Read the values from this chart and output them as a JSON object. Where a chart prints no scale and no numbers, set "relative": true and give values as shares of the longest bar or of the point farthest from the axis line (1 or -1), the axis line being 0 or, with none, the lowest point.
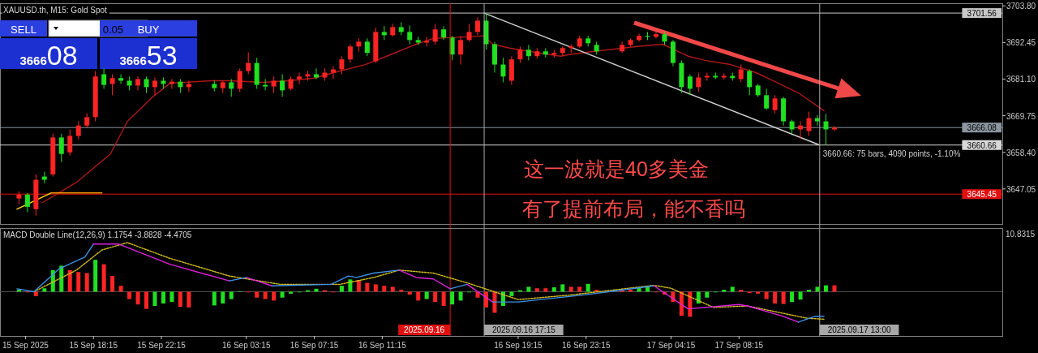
{
  "chart_data": [
    {
      "type": "candlestick",
      "title": "XAUUSD.th, M15:  Gold Spot",
      "xlim": [
        "2025-09-15T12:45",
        "2025-09-17T23:45"
      ],
      "ylim": [
        3636.2,
        3704.6
      ],
      "tick_labels": "y",
      "yticks": [
        {
          "value": 3703.8,
          "label": "3703.80"
        },
        {
          "value": 3692.45,
          "label": "3692.45"
        },
        {
          "value": 3681.1,
          "label": "3681.10"
        },
        {
          "value": 3669.75,
          "label": "3669.75"
        },
        {
          "value": 3658.4,
          "label": "3658.40"
        },
        {
          "value": 3647.05,
          "label": "3647.05"
        }
      ],
      "ref_lines": [
        {
          "axis": "y",
          "value": 3701.56,
          "label": "3701.56",
          "color": "#c8c8c8"
        },
        {
          "axis": "y",
          "value": 3666.08,
          "label": "3666.08",
          "color": "#8c96a0"
        },
        {
          "axis": "y",
          "value": 3660.66,
          "label": "3660.66",
          "color": "#d8d8d8"
        },
        {
          "axis": "y",
          "value": 3645.45,
          "label": "3645.45",
          "color": "#e01010"
        },
        {
          "axis": "x",
          "value": "2025-09-16T15:15",
          "label": "2025.09.16",
          "color": "#e01010"
        },
        {
          "axis": "x",
          "value": "2025-09-16T17:15",
          "label": "2025.09.16 17:15",
          "color": "#a8a8a8"
        },
        {
          "axis": "x",
          "value": "2025-09-17T13:00",
          "label": "2025.09.17 13:00",
          "color": "#a8a8a8"
        }
      ],
      "series": [
        {
          "type": "line",
          "color": "#b01818",
          "x": [
            "2025-09-15T15:15",
            "2025-09-15T17:15",
            "2025-09-15T19:15",
            "2025-09-15T20:15",
            "2025-09-15T21:45",
            "2025-09-15T22:45",
            "2025-09-16T01:15",
            "2025-09-16T02:15",
            "2025-09-16T04:15",
            "2025-09-16T05:45",
            "2025-09-16T07:15",
            "2025-09-16T08:45",
            "2025-09-16T10:15",
            "2025-09-16T11:45",
            "2025-09-16T13:15",
            "2025-09-16T14:15",
            "2025-09-16T16:15",
            "2025-09-16T17:15",
            "2025-09-16T17:45",
            "2025-09-16T18:45",
            "2025-09-16T20:15",
            "2025-09-16T21:45",
            "2025-09-16T22:15",
            "2025-09-16T23:15",
            "2025-09-17T02:15",
            "2025-09-17T03:45",
            "2025-09-17T04:15",
            "2025-09-17T05:15",
            "2025-09-17T06:15",
            "2025-09-17T07:45",
            "2025-09-17T09:15",
            "2025-09-17T10:15",
            "2025-09-17T11:45",
            "2025-09-17T13:15"
          ],
          "values": [
            3642.8,
            3649.1,
            3657.9,
            3668.0,
            3675.6,
            3679.8,
            3680.6,
            3680.6,
            3680.1,
            3680.6,
            3681.4,
            3683.6,
            3685.6,
            3688.7,
            3691.9,
            3693.7,
            3694.2,
            3694.5,
            3691.9,
            3690.7,
            3689.4,
            3688.2,
            3688.7,
            3689.4,
            3691.2,
            3691.9,
            3690.7,
            3688.2,
            3686.9,
            3685.6,
            3683.1,
            3680.6,
            3676.8,
            3671.3
          ]
        },
        {
          "type": "line",
          "color": "#ffd700",
          "x": [
            "2025-09-15T13:45",
            "2025-09-15T15:45"
          ],
          "values": [
            3640.8,
            3645.8
          ]
        },
        {
          "type": "line",
          "color": "#ff9900",
          "x": [
            "2025-09-15T15:45",
            "2025-09-15T18:45"
          ],
          "values": [
            3645.8,
            3645.8
          ]
        },
        {
          "type": "line",
          "color": "#d0d0d0",
          "x": [
            "2025-09-16T17:15",
            "2025-09-17T13:00"
          ],
          "values": [
            3701.56,
            3660.66
          ]
        },
        {
          "x": [
            "2025-09-15T13:52",
            "2025-09-15T14:22",
            "2025-09-15T14:52",
            "2025-09-15T15:22",
            "2025-09-15T15:52",
            "2025-09-15T16:22",
            "2025-09-15T16:52",
            "2025-09-15T17:22",
            "2025-09-15T17:52",
            "2025-09-15T18:22",
            "2025-09-15T18:52",
            "2025-09-15T19:22",
            "2025-09-15T19:52",
            "2025-09-15T20:22",
            "2025-09-15T20:52",
            "2025-09-15T21:22",
            "2025-09-15T21:52",
            "2025-09-15T22:22",
            "2025-09-15T22:52",
            "2025-09-15T23:22",
            "2025-09-15T23:52",
            "2025-09-16T01:22",
            "2025-09-16T01:52",
            "2025-09-16T02:22",
            "2025-09-16T02:52",
            "2025-09-16T03:22",
            "2025-09-16T03:52",
            "2025-09-16T04:22",
            "2025-09-16T04:52",
            "2025-09-16T05:22",
            "2025-09-16T05:52",
            "2025-09-16T06:22",
            "2025-09-16T06:52",
            "2025-09-16T07:22",
            "2025-09-16T07:52",
            "2025-09-16T08:22",
            "2025-09-16T08:52",
            "2025-09-16T09:22",
            "2025-09-16T09:52",
            "2025-09-16T10:22",
            "2025-09-16T10:52",
            "2025-09-16T11:22",
            "2025-09-16T11:52",
            "2025-09-16T12:22",
            "2025-09-16T12:52",
            "2025-09-16T13:22",
            "2025-09-16T13:52",
            "2025-09-16T14:22",
            "2025-09-16T14:52",
            "2025-09-16T15:22",
            "2025-09-16T15:52",
            "2025-09-16T16:22",
            "2025-09-16T16:52",
            "2025-09-16T17:22",
            "2025-09-16T17:52",
            "2025-09-16T18:22",
            "2025-09-16T18:52",
            "2025-09-16T19:22",
            "2025-09-16T19:52",
            "2025-09-16T20:22",
            "2025-09-16T20:52",
            "2025-09-16T21:22",
            "2025-09-16T21:52",
            "2025-09-16T22:22",
            "2025-09-16T22:52",
            "2025-09-16T23:22",
            "2025-09-16T23:52",
            "2025-09-17T01:22",
            "2025-09-17T01:52",
            "2025-09-17T02:22",
            "2025-09-17T02:52",
            "2025-09-17T03:22",
            "2025-09-17T03:52",
            "2025-09-17T04:22",
            "2025-09-17T04:52",
            "2025-09-17T05:22",
            "2025-09-17T05:52",
            "2025-09-17T06:22",
            "2025-09-17T06:52",
            "2025-09-17T07:22",
            "2025-09-17T07:52",
            "2025-09-17T08:22",
            "2025-09-17T08:52",
            "2025-09-17T09:22",
            "2025-09-17T09:52",
            "2025-09-17T10:22",
            "2025-09-17T10:52",
            "2025-09-17T11:22",
            "2025-09-17T11:52",
            "2025-09-17T12:22",
            "2025-09-17T12:52",
            "2025-09-17T13:22",
            "2025-09-17T13:52"
          ],
          "ohlc": [
            [
              3644.1,
              3646.3,
              3642.3,
              3645.3
            ],
            [
              3645.3,
              3645.8,
              3639.8,
              3641.5
            ],
            [
              3640.8,
              3651.6,
              3638.8,
              3649.9
            ],
            [
              3650.9,
              3652.4,
              3648.8,
              3649.9
            ],
            [
              3651.6,
              3664.2,
              3650.9,
              3663.0
            ],
            [
              3663.0,
              3664.2,
              3655.4,
              3657.9
            ],
            [
              3658.4,
              3665.5,
              3657.4,
              3663.5
            ],
            [
              3663.5,
              3668.0,
              3662.5,
              3666.7
            ],
            [
              3666.7,
              3670.5,
              3666.0,
              3669.3
            ],
            [
              3669.3,
              3683.6,
              3668.0,
              3681.9
            ],
            [
              3682.6,
              3684.4,
              3678.1,
              3679.3
            ],
            [
              3679.6,
              3682.6,
              3676.1,
              3681.4
            ],
            [
              3681.4,
              3682.6,
              3679.6,
              3680.6
            ],
            [
              3680.6,
              3681.9,
              3677.6,
              3679.1
            ],
            [
              3679.1,
              3681.9,
              3677.6,
              3681.1
            ],
            [
              3681.1,
              3681.9,
              3676.8,
              3678.6
            ],
            [
              3678.6,
              3681.6,
              3676.1,
              3680.6
            ],
            [
              3680.6,
              3681.6,
              3678.1,
              3679.6
            ],
            [
              3679.6,
              3681.1,
              3678.1,
              3680.3
            ],
            [
              3680.3,
              3681.1,
              3676.8,
              3678.6
            ],
            [
              3678.6,
              3680.6,
              3677.1,
              3679.6
            ],
            [
              3679.6,
              3680.6,
              3677.3,
              3678.3
            ],
            [
              3678.3,
              3680.6,
              3676.8,
              3680.1
            ],
            [
              3680.1,
              3681.1,
              3675.6,
              3678.1
            ],
            [
              3678.1,
              3684.4,
              3677.1,
              3683.6
            ],
            [
              3683.6,
              3689.4,
              3682.6,
              3686.1
            ],
            [
              3686.1,
              3687.7,
              3678.1,
              3679.3
            ],
            [
              3679.3,
              3681.1,
              3677.6,
              3678.8
            ],
            [
              3678.8,
              3681.9,
              3676.8,
              3680.6
            ],
            [
              3680.6,
              3682.6,
              3675.6,
              3677.6
            ],
            [
              3678.1,
              3681.9,
              3677.6,
              3681.1
            ],
            [
              3681.1,
              3683.1,
              3679.6,
              3681.9
            ],
            [
              3681.9,
              3683.6,
              3680.6,
              3682.6
            ],
            [
              3682.6,
              3684.4,
              3681.1,
              3681.6
            ],
            [
              3681.6,
              3684.4,
              3680.6,
              3683.1
            ],
            [
              3683.1,
              3685.1,
              3681.1,
              3684.1
            ],
            [
              3684.1,
              3688.2,
              3682.6,
              3687.2
            ],
            [
              3687.2,
              3691.9,
              3686.1,
              3691.2
            ],
            [
              3691.2,
              3693.7,
              3689.7,
              3692.7
            ],
            [
              3692.7,
              3693.7,
              3688.2,
              3689.2
            ],
            [
              3686.6,
              3697.0,
              3686.1,
              3695.7
            ],
            [
              3695.7,
              3697.5,
              3693.2,
              3694.7
            ],
            [
              3694.7,
              3698.2,
              3694.2,
              3697.2
            ],
            [
              3697.2,
              3698.7,
              3694.7,
              3695.7
            ],
            [
              3695.7,
              3697.7,
              3691.9,
              3693.2
            ],
            [
              3693.2,
              3694.2,
              3691.7,
              3692.4
            ],
            [
              3692.4,
              3694.2,
              3691.2,
              3692.9
            ],
            [
              3692.7,
              3698.2,
              3691.7,
              3696.5
            ],
            [
              3696.5,
              3697.5,
              3693.2,
              3694.0
            ],
            [
              3694.0,
              3694.5,
              3686.9,
              3688.7
            ],
            [
              3688.7,
              3694.5,
              3685.6,
              3693.2
            ],
            [
              3693.2,
              3698.2,
              3692.7,
              3695.7
            ],
            [
              3695.7,
              3700.3,
              3694.7,
              3699.2
            ],
            [
              3699.2,
              3701.56,
              3690.2,
              3691.9
            ],
            [
              3691.9,
              3692.7,
              3683.1,
              3685.6
            ],
            [
              3685.6,
              3687.7,
              3680.1,
              3681.9
            ],
            [
              3680.6,
              3688.2,
              3679.3,
              3687.2
            ],
            [
              3687.2,
              3691.2,
              3686.1,
              3690.2
            ],
            [
              3690.2,
              3691.7,
              3686.9,
              3688.2
            ],
            [
              3688.2,
              3690.7,
              3687.4,
              3689.7
            ],
            [
              3689.7,
              3690.7,
              3687.7,
              3688.7
            ],
            [
              3688.7,
              3690.2,
              3687.7,
              3689.2
            ],
            [
              3689.2,
              3691.2,
              3688.2,
              3690.7
            ],
            [
              3690.7,
              3691.9,
              3689.2,
              3691.2
            ],
            [
              3691.2,
              3694.5,
              3690.7,
              3693.7
            ],
            [
              3693.7,
              3694.5,
              3691.2,
              3692.2
            ],
            [
              3691.7,
              3692.7,
              3688.7,
              3689.7
            ],
            [
              3689.7,
              3692.7,
              3689.2,
              3691.7
            ],
            [
              3691.7,
              3693.7,
              3691.2,
              3693.2
            ],
            [
              3693.2,
              3695.2,
              3692.7,
              3694.5
            ],
            [
              3694.5,
              3695.7,
              3693.2,
              3694.2
            ],
            [
              3694.2,
              3695.7,
              3693.7,
              3695.0
            ],
            [
              3695.0,
              3695.7,
              3691.7,
              3692.7
            ],
            [
              3692.7,
              3693.2,
              3685.1,
              3686.1
            ],
            [
              3686.1,
              3686.9,
              3676.8,
              3678.6
            ],
            [
              3681.9,
              3682.6,
              3676.1,
              3678.1
            ],
            [
              3678.6,
              3683.1,
              3677.1,
              3681.6
            ],
            [
              3681.6,
              3683.1,
              3680.6,
              3682.1
            ],
            [
              3682.1,
              3683.1,
              3681.1,
              3681.6
            ],
            [
              3681.6,
              3682.9,
              3680.9,
              3682.1
            ],
            [
              3682.1,
              3683.1,
              3680.6,
              3681.4
            ],
            [
              3681.1,
              3685.6,
              3680.1,
              3684.1
            ],
            [
              3683.6,
              3684.1,
              3676.1,
              3678.6
            ],
            [
              3679.1,
              3679.6,
              3675.6,
              3676.1
            ],
            [
              3676.1,
              3678.1,
              3671.6,
              3672.0
            ],
            [
              3671.5,
              3676.1,
              3670.5,
              3675.1
            ],
            [
              3675.1,
              3675.6,
              3666.7,
              3668.0
            ],
            [
              3668.0,
              3668.5,
              3664.2,
              3665.5
            ],
            [
              3665.5,
              3668.0,
              3662.5,
              3666.7
            ],
            [
              3665.0,
              3671.0,
              3663.5,
              3669.0
            ],
            [
              3669.0,
              3670.0,
              3666.7,
              3668.0
            ],
            [
              3668.0,
              3670.3,
              3660.66,
              3665.5
            ],
            [
              3665.5,
              3666.5,
              3665.0,
              3666.08
            ]
          ],
          "colors": [
            "#ff2424",
            "#20e020",
            "#ff2424",
            "#20e020",
            "#ff2424",
            "#20e020",
            "#ff2424",
            "#ff2424",
            "#ff2424",
            "#ff2424",
            "#20e020",
            "#ff2424",
            "#20e020",
            "#20e020",
            "#ff2424",
            "#20e020",
            "#ff2424",
            "#20e020",
            "#ff2424",
            "#20e020",
            "#ff2424",
            "#20e020",
            "#ff2424",
            "#20e020",
            "#ff2424",
            "#ff2424",
            "#20e020",
            "#20e020",
            "#ff2424",
            "#20e020",
            "#ff2424",
            "#ff2424",
            "#ff2424",
            "#20e020",
            "#ff2424",
            "#ff2424",
            "#ff2424",
            "#ff2424",
            "#ff2424",
            "#20e020",
            "#ff2424",
            "#20e020",
            "#ff2424",
            "#20e020",
            "#20e020",
            "#20e020",
            "#ff2424",
            "#ff2424",
            "#20e020",
            "#20e020",
            "#ff2424",
            "#ff2424",
            "#ff2424",
            "#20e020",
            "#20e020",
            "#20e020",
            "#ff2424",
            "#ff2424",
            "#20e020",
            "#ff2424",
            "#20e020",
            "#ff2424",
            "#ff2424",
            "#ff2424",
            "#ff2424",
            "#20e020",
            "#20e020",
            "#ff2424",
            "#ff2424",
            "#ff2424",
            "#20e020",
            "#ff2424",
            "#20e020",
            "#20e020",
            "#20e020",
            "#20e020",
            "#ff2424",
            "#ff2424",
            "#20e020",
            "#ff2424",
            "#20e020",
            "#ff2424",
            "#20e020",
            "#20e020",
            "#20e020",
            "#ff2424",
            "#20e020",
            "#20e020",
            "#ff2424",
            "#ff2424",
            "#20e020",
            "#20e020",
            "#ff2424"
          ]
        }
      ],
      "annotations": [
        {
          "text": "3660.66: 75 bars, 4090 points, -1.10%",
          "x": "2025-09-17T13:00",
          "y": 3660.66
        },
        "这一波就是40多美金",
        "有了提前布局，能不香吗",
        "SELL",
        "0.05",
        "BUY",
        "366608",
        "366653"
      ]
    },
    {
      "type": "bar",
      "title": "MACD Double Line(12,26,9) 1.1754 -3.8828 -4.4705",
      "relative": true,
      "xlim": [
        "2025-09-15T12:45",
        "2025-09-17T23:45"
      ],
      "xticks": [
        {
          "value": "2025-09-15T14:15",
          "label": "15 Sep 2025"
        },
        {
          "value": "2025-09-15T18:15",
          "label": "15 Sep 18:15"
        },
        {
          "value": "2025-09-15T22:15",
          "label": "15 Sep 22:15"
        },
        {
          "value": "2025-09-16T03:15",
          "label": "16 Sep 03:15"
        },
        {
          "value": "2025-09-16T07:15",
          "label": "16 Sep 07:15"
        },
        {
          "value": "2025-09-16T11:15",
          "label": "16 Sep 11:15"
        },
        {
          "value": "2025-09-16T19:15",
          "label": "16 Sep 19:15"
        },
        {
          "value": "2025-09-16T23:15",
          "label": "16 Sep 23:15"
        },
        {
          "value": "2025-09-17T04:15",
          "label": "17 Sep 04:15"
        },
        {
          "value": "2025-09-17T08:15",
          "label": "17 Sep 08:15"
        }
      ],
      "x": [
        "2025-09-15T13:52",
        "2025-09-15T14:22",
        "2025-09-15T14:52",
        "2025-09-15T15:22",
        "2025-09-15T15:52",
        "2025-09-15T16:22",
        "2025-09-15T16:52",
        "2025-09-15T17:22",
        "2025-09-15T17:52",
        "2025-09-15T18:22",
        "2025-09-15T18:52",
        "2025-09-15T19:22",
        "2025-09-15T19:52",
        "2025-09-15T20:22",
        "2025-09-15T20:52",
        "2025-09-15T21:22",
        "2025-09-15T21:52",
        "2025-09-15T22:22",
        "2025-09-15T22:52",
        "2025-09-15T23:22",
        "2025-09-15T23:52",
        "2025-09-16T01:22",
        "2025-09-16T01:52",
        "2025-09-16T02:22",
        "2025-09-16T02:52",
        "2025-09-16T03:22",
        "2025-09-16T03:52",
        "2025-09-16T04:22",
        "2025-09-16T04:52",
        "2025-09-16T05:22",
        "2025-09-16T05:52",
        "2025-09-16T06:22",
        "2025-09-16T06:52",
        "2025-09-16T07:22",
        "2025-09-16T07:52",
        "2025-09-16T08:22",
        "2025-09-16T08:52",
        "2025-09-16T09:22",
        "2025-09-16T09:52",
        "2025-09-16T10:22",
        "2025-09-16T10:52",
        "2025-09-16T11:22",
        "2025-09-16T11:52",
        "2025-09-16T12:22",
        "2025-09-16T12:52",
        "2025-09-16T13:22",
        "2025-09-16T13:52",
        "2025-09-16T14:22",
        "2025-09-16T14:52",
        "2025-09-16T15:22",
        "2025-09-16T15:52",
        "2025-09-16T16:22",
        "2025-09-16T16:52",
        "2025-09-16T17:22",
        "2025-09-16T17:52",
        "2025-09-16T18:22",
        "2025-09-16T18:52",
        "2025-09-16T19:22",
        "2025-09-16T19:52",
        "2025-09-16T20:22",
        "2025-09-16T20:52",
        "2025-09-16T21:22",
        "2025-09-16T21:52",
        "2025-09-16T22:22",
        "2025-09-16T22:52",
        "2025-09-16T23:22",
        "2025-09-16T23:52",
        "2025-09-17T01:22",
        "2025-09-17T01:52",
        "2025-09-17T02:22",
        "2025-09-17T02:52",
        "2025-09-17T03:22",
        "2025-09-17T03:52",
        "2025-09-17T04:22",
        "2025-09-17T04:52",
        "2025-09-17T05:22",
        "2025-09-17T05:52",
        "2025-09-17T06:22",
        "2025-09-17T06:52",
        "2025-09-17T07:22",
        "2025-09-17T07:52",
        "2025-09-17T08:22",
        "2025-09-17T08:52",
        "2025-09-17T09:22",
        "2025-09-17T09:52",
        "2025-09-17T10:22",
        "2025-09-17T10:52",
        "2025-09-17T11:22",
        "2025-09-17T11:52",
        "2025-09-17T12:22",
        "2025-09-17T12:52",
        "2025-09-17T13:22",
        "2025-09-17T13:52"
      ],
      "series": [
        {
          "values": [
            0.04,
            0.0,
            -0.09,
            0.07,
            0.44,
            0.53,
            0.44,
            0.4,
            0.38,
            0.65,
            0.56,
            0.32,
            0.12,
            -0.15,
            -0.26,
            -0.35,
            -0.29,
            -0.24,
            -0.21,
            -0.31,
            -0.32,
            -0.28,
            -0.24,
            -0.15,
            0.01,
            0.0,
            -0.12,
            -0.15,
            -0.18,
            -0.12,
            -0.04,
            -0.01,
            0.03,
            0.06,
            0.03,
            0.0,
            0.12,
            0.25,
            0.24,
            0.18,
            0.15,
            0.12,
            0.1,
            0.04,
            -0.06,
            -0.18,
            -0.15,
            -0.21,
            -0.29,
            -0.26,
            -0.18,
            -0.01,
            -0.12,
            -0.32,
            -0.43,
            -0.29,
            -0.09,
            0.03,
            0.1,
            0.07,
            0.07,
            0.09,
            0.15,
            0.1,
            0.1,
            0.16,
            0.04,
            0.04,
            0.04,
            0.09,
            0.1,
            -0.01,
            -0.06,
            -0.21,
            -0.49,
            -0.51,
            -0.24,
            -0.12,
            0.0,
            0.04,
            0.1,
            0.04,
            -0.03,
            -0.04,
            -0.15,
            -0.24,
            -0.25,
            -0.21,
            -0.16,
            0.04,
            0.1,
            0.13,
            0.13
          ],
          "colors": [
            "#20e020",
            "#ff2424",
            "#ff2424",
            "#20e020",
            "#20e020",
            "#20e020",
            "#ff2424",
            "#ff2424",
            "#ff2424",
            "#20e020",
            "#ff2424",
            "#ff2424",
            "#ff2424",
            "#ff2424",
            "#ff2424",
            "#ff2424",
            "#20e020",
            "#20e020",
            "#20e020",
            "#ff2424",
            "#ff2424",
            "#20e020",
            "#20e020",
            "#20e020",
            "#20e020",
            "#ff2424",
            "#ff2424",
            "#ff2424",
            "#ff2424",
            "#20e020",
            "#20e020",
            "#20e020",
            "#20e020",
            "#20e020",
            "#ff2424",
            "#ff2424",
            "#20e020",
            "#20e020",
            "#ff2424",
            "#ff2424",
            "#ff2424",
            "#ff2424",
            "#ff2424",
            "#ff2424",
            "#ff2424",
            "#ff2424",
            "#20e020",
            "#ff2424",
            "#ff2424",
            "#20e020",
            "#20e020",
            "#20e020",
            "#ff2424",
            "#ff2424",
            "#ff2424",
            "#20e020",
            "#20e020",
            "#20e020",
            "#20e020",
            "#ff2424",
            "#ff2424",
            "#20e020",
            "#20e020",
            "#ff2424",
            "#ff2424",
            "#20e020",
            "#ff2424",
            "#ff2424",
            "#ff2424",
            "#20e020",
            "#20e020",
            "#ff2424",
            "#ff2424",
            "#ff2424",
            "#ff2424",
            "#ff2424",
            "#20e020",
            "#20e020",
            "#20e020",
            "#20e020",
            "#20e020",
            "#ff2424",
            "#ff2424",
            "#ff2424",
            "#ff2424",
            "#ff2424",
            "#ff2424",
            "#20e020",
            "#20e020",
            "#20e020",
            "#20e020",
            "#20e020",
            "#ff2424"
          ]
        },
        {
          "type": "line",
          "color": "#d4c020",
          "line_style": "dotted",
          "x": [
            "2025-09-15T14:45",
            "2025-09-15T17:15",
            "2025-09-15T18:45",
            "2025-09-15T20:15",
            "2025-09-15T22:45",
            "2025-09-16T02:15",
            "2025-09-16T05:15",
            "2025-09-16T08:45",
            "2025-09-16T10:45",
            "2025-09-16T12:15",
            "2025-09-16T14:15",
            "2025-09-16T16:15",
            "2025-09-16T17:45",
            "2025-09-16T19:15",
            "2025-09-16T22:15",
            "2025-09-17T03:15",
            "2025-09-17T04:15",
            "2025-09-17T06:45",
            "2025-09-17T08:45",
            "2025-09-17T12:15",
            "2025-09-17T13:15"
          ],
          "values": [
            0.0,
            0.44,
            0.85,
            1.0,
            0.68,
            0.32,
            0.15,
            0.15,
            0.29,
            0.44,
            0.38,
            0.18,
            0.01,
            -0.16,
            -0.07,
            0.13,
            0.07,
            -0.32,
            -0.29,
            -0.54,
            -0.56
          ]
        },
        {
          "type": "line",
          "color": "#3d8fe8",
          "x": [
            "2025-09-15T13:45",
            "2025-09-15T14:45",
            "2025-09-15T16:15",
            "2025-09-15T17:45",
            "2025-09-15T18:15"
          ],
          "values": [
            0.06,
            0.0,
            0.47,
            0.71,
            0.97
          ]
        },
        {
          "type": "line",
          "color": "#e020e0",
          "x": [
            "2025-09-15T18:15",
            "2025-09-15T19:45",
            "2025-09-15T22:45",
            "2025-09-16T02:15"
          ],
          "values": [
            0.97,
            0.97,
            0.56,
            0.22
          ]
        },
        {
          "type": "line",
          "color": "#3d8fe8",
          "x": [
            "2025-09-16T02:15",
            "2025-09-16T03:15"
          ],
          "values": [
            0.22,
            0.29
          ]
        },
        {
          "type": "line",
          "color": "#e020e0",
          "x": [
            "2025-09-16T03:15",
            "2025-09-16T04:45"
          ],
          "values": [
            0.29,
            0.12
          ]
        },
        {
          "type": "line",
          "color": "#3d8fe8",
          "x": [
            "2025-09-16T04:45",
            "2025-09-16T08:15",
            "2025-09-16T09:15",
            "2025-09-16T09:45",
            "2025-09-16T10:45",
            "2025-09-16T12:15"
          ],
          "values": [
            0.12,
            0.15,
            0.32,
            0.29,
            0.38,
            0.44
          ]
        },
        {
          "type": "line",
          "color": "#e020e0",
          "x": [
            "2025-09-16T12:15",
            "2025-09-16T13:15",
            "2025-09-16T14:15",
            "2025-09-16T15:15"
          ],
          "values": [
            0.44,
            0.29,
            0.26,
            0.06
          ]
        },
        {
          "type": "line",
          "color": "#3d8fe8",
          "x": [
            "2025-09-16T15:15",
            "2025-09-16T16:15"
          ],
          "values": [
            0.06,
            0.15
          ]
        },
        {
          "type": "line",
          "color": "#e020e0",
          "x": [
            "2025-09-16T16:15",
            "2025-09-16T17:45"
          ],
          "values": [
            0.15,
            -0.21
          ]
        },
        {
          "type": "line",
          "color": "#3d8fe8",
          "x": [
            "2025-09-16T17:45",
            "2025-09-16T19:15",
            "2025-09-16T23:15",
            "2025-09-17T03:15"
          ],
          "values": [
            -0.21,
            -0.21,
            -0.06,
            0.12
          ]
        },
        {
          "type": "line",
          "color": "#e020e0",
          "x": [
            "2025-09-17T03:15",
            "2025-09-17T05:15",
            "2025-09-17T08:15",
            "2025-09-17T08:45",
            "2025-09-17T10:45",
            "2025-09-17T11:45"
          ],
          "values": [
            0.12,
            -0.35,
            -0.26,
            -0.29,
            -0.49,
            -0.62
          ]
        },
        {
          "type": "line",
          "color": "#3d8fe8",
          "x": [
            "2025-09-17T11:45",
            "2025-09-17T12:45",
            "2025-09-17T13:15"
          ],
          "values": [
            -0.62,
            -0.5,
            -0.5
          ]
        }
      ],
      "annotations": [
        "10.8315"
      ]
    }
  ]
}
